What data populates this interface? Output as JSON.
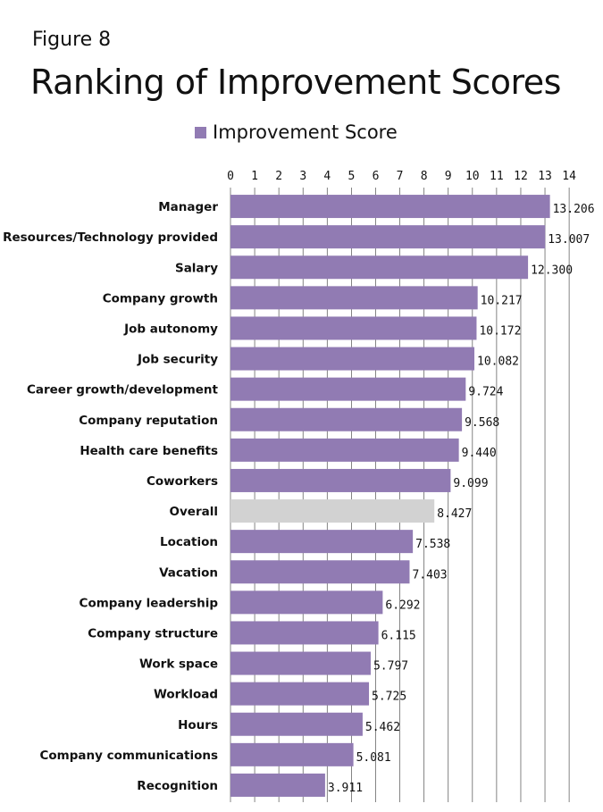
{
  "figure": {
    "label": "Figure 8",
    "title": "Ranking of Improvement Scores"
  },
  "colors": {
    "bar": "#917bb3",
    "highlight_bar": "#d2d2d2",
    "grid": "#666666"
  },
  "chart_data": {
    "type": "bar",
    "orientation": "horizontal",
    "title": "Ranking of Improvement Scores",
    "xlabel": "",
    "ylabel": "",
    "xlim": [
      0,
      14
    ],
    "x_ticks": [
      "0",
      "1",
      "2",
      "3",
      "4",
      "5",
      "6",
      "7",
      "8",
      "9",
      "10",
      "11",
      "12",
      "13",
      "14"
    ],
    "grid": true,
    "legend_position": "top",
    "categories": [
      "Manager",
      "Resources/Technology provided",
      "Salary",
      "Company growth",
      "Job autonomy",
      "Job security",
      "Career growth/development",
      "Company reputation",
      "Health care benefits",
      "Coworkers",
      "Overall",
      "Location",
      "Vacation",
      "Company leadership",
      "Company structure",
      "Work space",
      "Workload",
      "Hours",
      "Company communications",
      "Recognition"
    ],
    "series": [
      {
        "name": "Improvement Score",
        "values": [
          13.206,
          13.007,
          12.3,
          10.217,
          10.172,
          10.082,
          9.724,
          9.568,
          9.44,
          9.099,
          8.427,
          7.538,
          7.403,
          6.292,
          6.115,
          5.797,
          5.725,
          5.462,
          5.081,
          3.911
        ],
        "value_labels": [
          "13.206",
          "13.007",
          "12.300",
          "10.217",
          "10.172",
          "10.082",
          "9.724",
          "9.568",
          "9.440",
          "9.099",
          "8.427",
          "7.538",
          "7.403",
          "6.292",
          "6.115",
          "5.797",
          "5.725",
          "5.462",
          "5.081",
          "3.911"
        ]
      }
    ],
    "highlighted_category": "Overall"
  }
}
